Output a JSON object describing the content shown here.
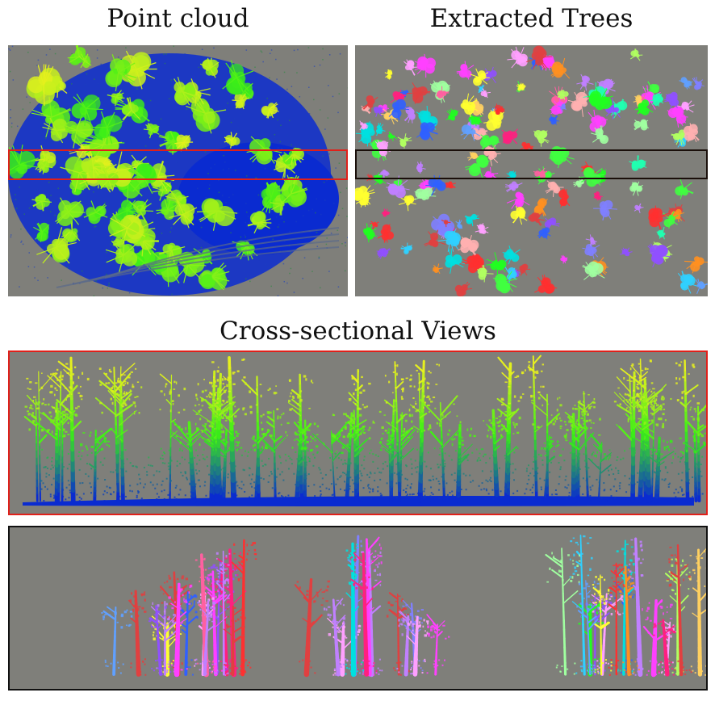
{
  "titles": {
    "point_cloud": "Point cloud",
    "extracted_trees": "Extracted Trees",
    "cross_sectional": "Cross-sectional Views"
  },
  "colors": {
    "background_gray": "#7f7f7a",
    "highlight_red": "#e0201a",
    "highlight_black": "#1a0f0a",
    "ground_blue": "#0a2bd0",
    "canopy_green": "#3cf016",
    "canopy_yellow": "#e6f01e"
  }
}
